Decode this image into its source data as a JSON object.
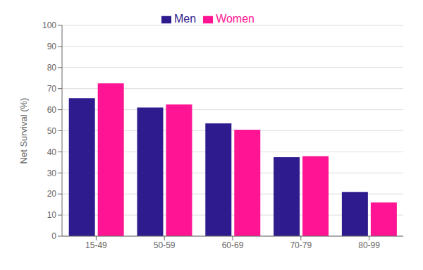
{
  "chart_data": {
    "type": "bar",
    "categories": [
      "15-49",
      "50-59",
      "60-69",
      "70-79",
      "80-99"
    ],
    "series": [
      {
        "name": "Men",
        "color": "#2E1B8E",
        "values": [
          65.5,
          61.0,
          53.5,
          37.5,
          21.0
        ]
      },
      {
        "name": "Women",
        "color": "#FF1493",
        "values": [
          72.5,
          62.5,
          50.5,
          38.0,
          16.0
        ]
      }
    ],
    "ylabel": "Net Survival (%)",
    "ylim": [
      0,
      100
    ],
    "yticks": [
      0,
      10,
      20,
      30,
      40,
      50,
      60,
      70,
      80,
      90,
      100
    ],
    "grid": true,
    "legend": "top"
  }
}
